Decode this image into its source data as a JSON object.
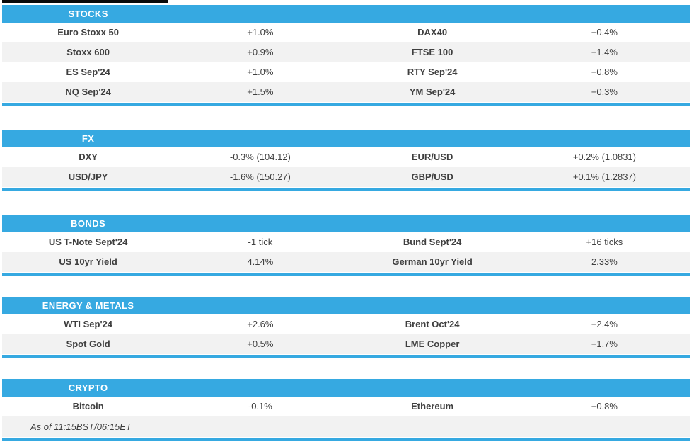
{
  "theme": {
    "accent_blue": "#36a9e1",
    "alt_row_bg": "#f2f2f2",
    "text_color": "#3f3f3f",
    "header_text_color": "#ffffff",
    "top_strip_color": "#0a0a0a"
  },
  "sections": [
    {
      "title": "STOCKS",
      "rows": [
        [
          "Euro Stoxx 50",
          "+1.0%",
          "DAX40",
          "+0.4%"
        ],
        [
          "Stoxx 600",
          "+0.9%",
          "FTSE 100",
          "+1.4%"
        ],
        [
          "ES Sep'24",
          "+1.0%",
          "RTY Sep'24",
          "+0.8%"
        ],
        [
          "NQ Sep'24",
          "+1.5%",
          "YM Sep'24",
          "+0.3%"
        ]
      ]
    },
    {
      "title": "FX",
      "rows": [
        [
          "DXY",
          "-0.3% (104.12)",
          "EUR/USD",
          "+0.2% (1.0831)"
        ],
        [
          "USD/JPY",
          "-1.6% (150.27)",
          "GBP/USD",
          "+0.1% (1.2837)"
        ]
      ]
    },
    {
      "title": "BONDS",
      "rows": [
        [
          "US T-Note Sept'24",
          "-1 tick",
          "Bund Sept'24",
          "+16 ticks"
        ],
        [
          "US 10yr Yield",
          "4.14%",
          "German 10yr Yield",
          "2.33%"
        ]
      ]
    },
    {
      "title": "ENERGY & METALS",
      "rows": [
        [
          "WTI Sep'24",
          "+2.6%",
          "Brent Oct'24",
          "+2.4%"
        ],
        [
          "Spot Gold",
          "+0.5%",
          "LME Copper",
          "+1.7%"
        ]
      ]
    },
    {
      "title": "CRYPTO",
      "rows": [
        [
          "Bitcoin",
          "-0.1%",
          "Ethereum",
          "+0.8%"
        ]
      ],
      "footer": "As of 11:15BST/06:15ET"
    }
  ]
}
